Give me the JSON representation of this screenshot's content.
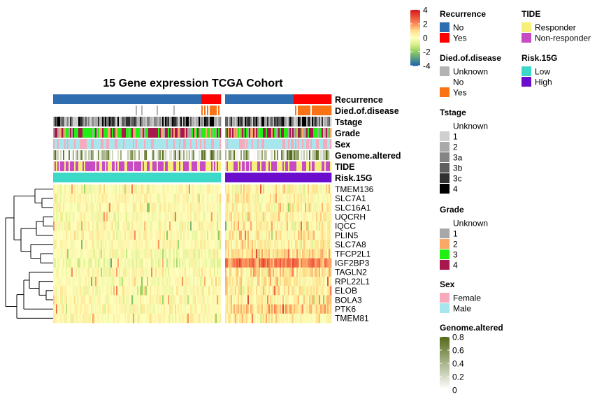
{
  "chart_data": {
    "type": "heatmap",
    "title": "15 Gene expression TCGA Cohort",
    "genes": [
      "TMEM136",
      "SLC7A1",
      "SLC16A1",
      "UQCRH",
      "IQCC",
      "PLIN5",
      "SLC7A8",
      "TFCP2L1",
      "IGF2BP3",
      "TAGLN2",
      "RPL22L1",
      "ELOB",
      "BOLA3",
      "PTK6",
      "TMEM81"
    ],
    "groups": [
      {
        "name": "Low",
        "n_samples": 120
      },
      {
        "name": "High",
        "n_samples": 76
      }
    ],
    "gene_group_mean": {
      "Low": [
        0.2,
        0.1,
        0.1,
        0.0,
        0.1,
        0.2,
        0.1,
        -0.1,
        -0.3,
        0.1,
        0.0,
        0.1,
        0.1,
        0.2,
        0.2
      ],
      "High": [
        0.3,
        0.4,
        0.4,
        0.4,
        0.3,
        0.6,
        0.4,
        0.9,
        2.2,
        0.9,
        0.6,
        0.5,
        0.5,
        1.1,
        0.4
      ]
    },
    "expression_scale": {
      "min": -4,
      "max": 4,
      "ticks": [
        4,
        2,
        0,
        -2,
        -4
      ]
    },
    "annotation_tracks": [
      {
        "name": "Recurrence",
        "label": "Recurrence",
        "low_composition": {
          "No": 0.88,
          "Yes": 0.12
        },
        "high_composition": {
          "No": 0.64,
          "Yes": 0.36
        }
      },
      {
        "name": "Died.of.disease",
        "label": "Died.of.disease",
        "low_composition": {
          "No": 0.88,
          "Unknown": 0.02,
          "Yes": 0.1
        },
        "high_composition": {
          "No": 0.65,
          "Yes": 0.35
        }
      },
      {
        "name": "Tstage",
        "label": "Tstage"
      },
      {
        "name": "Grade",
        "label": "Grade"
      },
      {
        "name": "Sex",
        "label": "Sex"
      },
      {
        "name": "Genome.altered",
        "label": "Genome.altered"
      },
      {
        "name": "TIDE",
        "label": "TIDE"
      },
      {
        "name": "Risk.15G",
        "label": "Risk.15G"
      }
    ],
    "legends": [
      {
        "title": "Recurrence",
        "items": [
          {
            "label": "No",
            "color": "#2E6EB0"
          },
          {
            "label": "Yes",
            "color": "#FF0000"
          }
        ]
      },
      {
        "title": "Died.of.disease",
        "items": [
          {
            "label": "Unknown",
            "color": "#B3B3B3"
          },
          {
            "label": "No",
            "color": "#FFFFFF"
          },
          {
            "label": "Yes",
            "color": "#F97316"
          }
        ]
      },
      {
        "title": "Tstage",
        "items": [
          {
            "label": "Unknown",
            "color": "#FFFFFF"
          },
          {
            "label": "1",
            "color": "#CFCFCF"
          },
          {
            "label": "2",
            "color": "#A9A9A9"
          },
          {
            "label": "3a",
            "color": "#858585"
          },
          {
            "label": "3b",
            "color": "#606060"
          },
          {
            "label": "3c",
            "color": "#303030"
          },
          {
            "label": "4",
            "color": "#000000"
          }
        ]
      },
      {
        "title": "Grade",
        "items": [
          {
            "label": "Unknown",
            "color": "#FFFFFF"
          },
          {
            "label": "1",
            "color": "#A8A8A8"
          },
          {
            "label": "2",
            "color": "#F9A868"
          },
          {
            "label": "3",
            "color": "#22EE11"
          },
          {
            "label": "4",
            "color": "#A8174E"
          }
        ]
      },
      {
        "title": "Sex",
        "items": [
          {
            "label": "Female",
            "color": "#F7AABB"
          },
          {
            "label": "Male",
            "color": "#A8E6EE"
          }
        ]
      },
      {
        "title": "TIDE",
        "items": [
          {
            "label": "Responder",
            "color": "#F6F07A"
          },
          {
            "label": "Non-responder",
            "color": "#C64BC4"
          }
        ]
      },
      {
        "title": "Risk.15G",
        "items": [
          {
            "label": "Low",
            "color": "#3DD9C8"
          },
          {
            "label": "High",
            "color": "#6A0DCC"
          }
        ]
      }
    ],
    "genome_altered_scale": {
      "title": "Genome.altered",
      "min": 0,
      "max": 0.8,
      "ticks": [
        "0.8",
        "0.6",
        "0.4",
        "0.2",
        "0"
      ],
      "color_low": "#FFFFFF",
      "color_high": "#556B1A"
    },
    "colors": {
      "heat_low": "#2166AC",
      "heat_mid": "#FFFFBF",
      "heat_high": "#D7191C"
    }
  }
}
